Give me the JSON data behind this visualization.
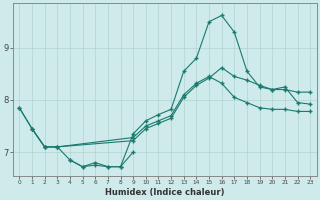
{
  "xlabel": "Humidex (Indice chaleur)",
  "bg_color": "#ceeaea",
  "line_color": "#1a7a6e",
  "grid_color": "#b0d4d0",
  "xlim": [
    -0.5,
    23.5
  ],
  "ylim": [
    6.55,
    9.85
  ],
  "yticks": [
    7,
    8,
    9
  ],
  "xticks": [
    0,
    1,
    2,
    3,
    4,
    5,
    6,
    7,
    8,
    9,
    10,
    11,
    12,
    13,
    14,
    15,
    16,
    17,
    18,
    19,
    20,
    21,
    22,
    23
  ],
  "curves": [
    {
      "x": [
        0,
        1,
        2,
        3,
        4,
        5,
        6,
        7,
        8,
        9,
        10,
        11,
        12,
        13,
        14,
        15,
        16,
        17,
        18,
        19,
        20,
        21,
        22,
        23
      ],
      "y": [
        7.85,
        7.45,
        7.1,
        7.1,
        6.85,
        6.72,
        6.8,
        6.72,
        6.72,
        7.35,
        7.6,
        7.72,
        7.82,
        8.55,
        8.8,
        9.5,
        9.62,
        9.3,
        8.55,
        8.25,
        8.2,
        8.25,
        7.95,
        7.92
      ]
    },
    {
      "x": [
        0,
        1,
        2,
        3,
        9,
        10,
        11,
        12,
        13,
        14,
        15,
        16,
        17,
        18,
        19,
        20,
        21,
        22,
        23
      ],
      "y": [
        7.85,
        7.45,
        7.1,
        7.1,
        7.28,
        7.5,
        7.6,
        7.7,
        8.1,
        8.32,
        8.45,
        8.32,
        8.05,
        7.95,
        7.85,
        7.82,
        7.82,
        7.78,
        7.78
      ]
    },
    {
      "x": [
        1,
        2,
        3,
        9,
        10,
        11,
        12,
        13,
        14,
        15,
        16,
        17,
        18,
        19,
        20,
        21,
        22,
        23
      ],
      "y": [
        7.45,
        7.1,
        7.1,
        7.22,
        7.45,
        7.55,
        7.65,
        8.05,
        8.28,
        8.42,
        8.62,
        8.45,
        8.38,
        8.28,
        8.2,
        8.2,
        8.15,
        8.15
      ]
    },
    {
      "x": [
        4,
        5,
        6,
        7,
        8,
        9
      ],
      "y": [
        6.85,
        6.72,
        6.75,
        6.72,
        6.72,
        7.0
      ]
    }
  ]
}
